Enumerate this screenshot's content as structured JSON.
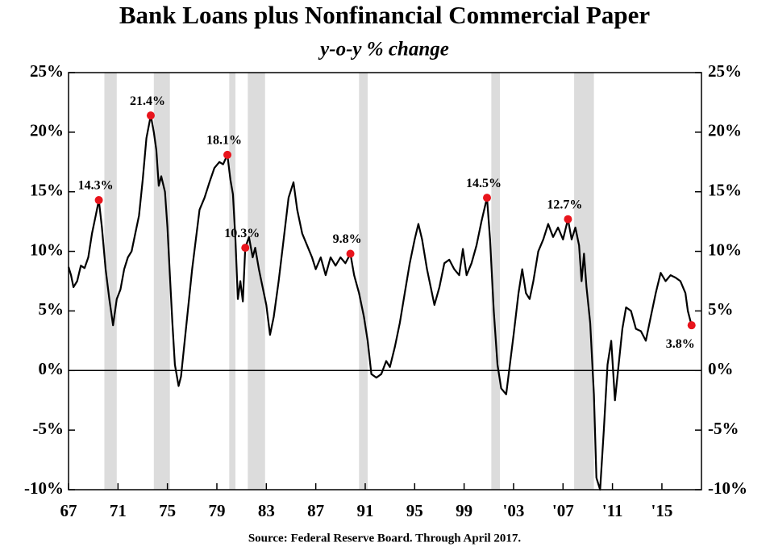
{
  "chart_data": {
    "type": "line",
    "title": "Bank Loans plus Nonfinancial Commercial Paper",
    "subtitle": "y-o-y % change",
    "source": "Source: Federal Reserve Board. Through April 2017.",
    "color": "#000000",
    "marker_color": "#e8141c",
    "recession_color": "#dcdcdc",
    "xlim": [
      1967,
      2018.2
    ],
    "xticks": [
      {
        "value": 1967,
        "label": "67"
      },
      {
        "value": 1971,
        "label": "71"
      },
      {
        "value": 1975,
        "label": "75"
      },
      {
        "value": 1979,
        "label": "79"
      },
      {
        "value": 1983,
        "label": "83"
      },
      {
        "value": 1987,
        "label": "87"
      },
      {
        "value": 1991,
        "label": "91"
      },
      {
        "value": 1995,
        "label": "95"
      },
      {
        "value": 1999,
        "label": "99"
      },
      {
        "value": 2003,
        "label": "'03"
      },
      {
        "value": 2007,
        "label": "'07"
      },
      {
        "value": 2011,
        "label": "'11"
      },
      {
        "value": 2015,
        "label": "'15"
      }
    ],
    "ylim": [
      -10,
      25
    ],
    "yticks": [
      {
        "value": -10,
        "label": "-10%"
      },
      {
        "value": -5,
        "label": "-5%"
      },
      {
        "value": 0,
        "label": "0%"
      },
      {
        "value": 5,
        "label": "5%"
      },
      {
        "value": 10,
        "label": "10%"
      },
      {
        "value": 15,
        "label": "15%"
      },
      {
        "value": 20,
        "label": "20%"
      },
      {
        "value": 25,
        "label": "25%"
      }
    ],
    "y2lim": [
      -10,
      25
    ],
    "y2ticks": [
      {
        "value": -10,
        "label": "-10%"
      },
      {
        "value": -5,
        "label": "-5%"
      },
      {
        "value": 0,
        "label": "0%"
      },
      {
        "value": 5,
        "label": "5%"
      },
      {
        "value": 10,
        "label": "10%"
      },
      {
        "value": 15,
        "label": "15%"
      },
      {
        "value": 20,
        "label": "20%"
      },
      {
        "value": 25,
        "label": "25%"
      }
    ],
    "recessions": [
      [
        1969.9,
        1970.9
      ],
      [
        1973.9,
        1975.2
      ],
      [
        1980.0,
        1980.5
      ],
      [
        1981.5,
        1982.9
      ],
      [
        1990.5,
        1991.2
      ],
      [
        2001.2,
        2001.9
      ],
      [
        2007.9,
        2009.5
      ]
    ],
    "x": [
      1967.0,
      1967.2,
      1967.4,
      1967.7,
      1968.0,
      1968.3,
      1968.6,
      1968.9,
      1969.2,
      1969.45,
      1969.7,
      1970.0,
      1970.3,
      1970.6,
      1970.9,
      1971.2,
      1971.5,
      1971.8,
      1972.1,
      1972.4,
      1972.7,
      1973.0,
      1973.3,
      1973.65,
      1973.9,
      1974.1,
      1974.3,
      1974.5,
      1974.8,
      1975.0,
      1975.2,
      1975.4,
      1975.6,
      1975.9,
      1976.1,
      1976.4,
      1976.7,
      1977.0,
      1977.3,
      1977.6,
      1978.0,
      1978.4,
      1978.8,
      1979.2,
      1979.5,
      1979.85,
      1980.1,
      1980.3,
      1980.5,
      1980.7,
      1980.9,
      1981.1,
      1981.3,
      1981.6,
      1981.9,
      1982.1,
      1982.4,
      1982.7,
      1983.0,
      1983.3,
      1983.6,
      1984.0,
      1984.4,
      1984.8,
      1985.2,
      1985.5,
      1985.9,
      1986.3,
      1986.7,
      1987.0,
      1987.4,
      1987.8,
      1988.2,
      1988.6,
      1989.0,
      1989.4,
      1989.8,
      1990.1,
      1990.5,
      1990.9,
      1991.2,
      1991.5,
      1991.9,
      1992.3,
      1992.7,
      1993.0,
      1993.4,
      1993.8,
      1994.2,
      1994.6,
      1995.0,
      1995.3,
      1995.6,
      1996.0,
      1996.3,
      1996.6,
      1997.0,
      1997.4,
      1997.8,
      1998.2,
      1998.6,
      1998.9,
      1999.2,
      1999.6,
      2000.0,
      2000.4,
      2000.85,
      2001.1,
      2001.4,
      2001.7,
      2002.0,
      2002.4,
      2002.7,
      2003.0,
      2003.4,
      2003.7,
      2004.0,
      2004.3,
      2004.6,
      2005.0,
      2005.4,
      2005.8,
      2006.2,
      2006.6,
      2007.0,
      2007.4,
      2007.7,
      2008.0,
      2008.3,
      2008.5,
      2008.7,
      2008.9,
      2009.2,
      2009.5,
      2009.7,
      2010.0,
      2010.3,
      2010.6,
      2010.9,
      2011.2,
      2011.5,
      2011.8,
      2012.1,
      2012.5,
      2012.9,
      2013.3,
      2013.7,
      2014.1,
      2014.5,
      2014.9,
      2015.3,
      2015.7,
      2016.1,
      2016.5,
      2016.9,
      2017.1,
      2017.4
    ],
    "values": [
      8.7,
      8.0,
      7.0,
      7.5,
      8.8,
      8.6,
      9.5,
      11.5,
      13.0,
      14.3,
      12.0,
      8.5,
      6.0,
      3.8,
      6.0,
      6.8,
      8.5,
      9.5,
      10.0,
      11.5,
      13.0,
      16.0,
      19.5,
      21.4,
      20.0,
      18.5,
      15.5,
      16.3,
      15.0,
      12.0,
      8.0,
      4.0,
      0.5,
      -1.3,
      -0.5,
      2.5,
      5.5,
      8.5,
      11.0,
      13.5,
      14.5,
      15.8,
      17.0,
      17.5,
      17.3,
      18.1,
      16.0,
      14.8,
      11.0,
      6.0,
      7.5,
      5.8,
      10.3,
      11.2,
      9.5,
      10.3,
      8.5,
      7.0,
      5.5,
      3.0,
      4.5,
      7.5,
      11.0,
      14.5,
      15.8,
      13.5,
      11.5,
      10.5,
      9.5,
      8.5,
      9.5,
      8.0,
      9.5,
      8.8,
      9.5,
      9.0,
      9.8,
      8.0,
      6.5,
      4.5,
      2.5,
      -0.3,
      -0.6,
      -0.3,
      0.8,
      0.3,
      2.0,
      4.0,
      6.5,
      9.0,
      11.0,
      12.3,
      11.0,
      8.5,
      7.0,
      5.5,
      7.0,
      9.0,
      9.3,
      8.5,
      8.0,
      10.2,
      8.0,
      9.0,
      10.5,
      12.5,
      14.5,
      11.0,
      5.0,
      0.5,
      -1.5,
      -2.0,
      0.5,
      3.0,
      6.5,
      8.5,
      6.5,
      6.0,
      7.5,
      10.0,
      11.0,
      12.3,
      11.2,
      12.0,
      11.0,
      12.7,
      11.0,
      12.0,
      10.5,
      7.5,
      9.8,
      7.0,
      4.0,
      -2.0,
      -9.0,
      -10.0,
      -5.0,
      0.5,
      2.5,
      -2.5,
      0.5,
      3.5,
      5.3,
      5.0,
      3.5,
      3.3,
      2.5,
      4.5,
      6.5,
      8.2,
      7.5,
      8.0,
      7.8,
      7.5,
      6.5,
      5.0,
      3.8
    ],
    "annotations": [
      {
        "x": 1969.45,
        "y": 14.3,
        "label": "14.3%"
      },
      {
        "x": 1973.65,
        "y": 21.4,
        "label": "21.4%"
      },
      {
        "x": 1979.85,
        "y": 18.1,
        "label": "18.1%"
      },
      {
        "x": 1981.3,
        "y": 10.3,
        "label": "10.3%"
      },
      {
        "x": 1989.8,
        "y": 9.8,
        "label": "9.8%"
      },
      {
        "x": 2000.85,
        "y": 14.5,
        "label": "14.5%"
      },
      {
        "x": 2007.4,
        "y": 12.7,
        "label": "12.7%"
      },
      {
        "x": 2017.4,
        "y": 3.8,
        "label": "3.8%"
      }
    ]
  }
}
